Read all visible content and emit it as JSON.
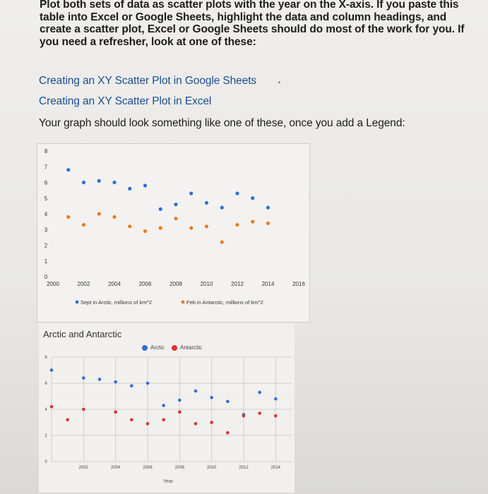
{
  "intro_text": "Plot both sets of data as scatter plots with the year on the X-axis. If you paste this table into Excel or Google Sheets, highlight the data and column headings, and create a scatter plot, Excel or Google Sheets should do most of the work for you. If you need a refresher, look at one of these:",
  "links": {
    "google_sheets": "Creating an XY Scatter Plot in Google Sheets",
    "excel": "Creating an XY Scatter Plot in Excel"
  },
  "caption": "Your graph should look something like one of these, once you add a Legend:",
  "colors": {
    "sept_arctic": "#2f6fd6",
    "feb_antarctic": "#ee7a1c",
    "link": "#1d4f8f"
  },
  "chart_data": [
    {
      "type": "scatter",
      "title": "",
      "xlabel": "",
      "ylabel": "",
      "xlim": [
        2000,
        2016
      ],
      "ylim": [
        0,
        8
      ],
      "xticks": [
        "2000",
        "2002",
        "2004",
        "2006",
        "2008",
        "2010",
        "2012",
        "2014",
        "2016"
      ],
      "yticks": [
        "0",
        "1",
        "2",
        "3",
        "4",
        "5",
        "6",
        "7",
        "8"
      ],
      "grid": false,
      "legend": "bottom",
      "series": [
        {
          "name": "Sept in Arctic, millions of km^2",
          "x": [
            2001,
            2002,
            2003,
            2004,
            2005,
            2006,
            2007,
            2008,
            2009,
            2010,
            2011,
            2012,
            2013,
            2014
          ],
          "y": [
            6.8,
            6.0,
            6.1,
            6.0,
            5.6,
            5.8,
            4.3,
            4.6,
            5.3,
            4.7,
            4.4,
            5.3,
            5.0,
            4.4
          ]
        },
        {
          "name": "Feb in Antarctic, millions of km^2",
          "x": [
            2001,
            2002,
            2003,
            2004,
            2005,
            2006,
            2007,
            2008,
            2009,
            2010,
            2011,
            2012,
            2013,
            2014
          ],
          "y": [
            3.8,
            3.3,
            4.0,
            3.8,
            3.2,
            2.9,
            3.1,
            3.7,
            3.1,
            3.2,
            2.2,
            3.3,
            3.5,
            3.4
          ]
        }
      ]
    },
    {
      "type": "scatter",
      "title": "Arctic and Antarctic",
      "xlabel": "Year",
      "ylabel": "",
      "xlim": [
        2000,
        2015
      ],
      "ylim": [
        0,
        8
      ],
      "xticks": [
        "2002",
        "2004",
        "2006",
        "2008",
        "2010",
        "2012",
        "2014"
      ],
      "yticks": [
        "0",
        "2",
        "4",
        "6",
        "8"
      ],
      "grid": true,
      "legend": "top",
      "series": [
        {
          "name": "Arctic",
          "x": [
            2000,
            2002,
            2003,
            2004,
            2005,
            2006,
            2007,
            2008,
            2009,
            2010,
            2011,
            2012,
            2013,
            2014
          ],
          "y": [
            7.0,
            6.4,
            6.3,
            6.1,
            5.8,
            6.0,
            4.3,
            4.7,
            5.4,
            4.9,
            4.6,
            3.6,
            5.3,
            4.8
          ]
        },
        {
          "name": "Antarctic",
          "x": [
            2000,
            2001,
            2002,
            2004,
            2005,
            2006,
            2007,
            2008,
            2009,
            2010,
            2011,
            2012,
            2013,
            2014
          ],
          "y": [
            4.2,
            3.2,
            4.0,
            3.8,
            3.2,
            2.9,
            3.2,
            3.8,
            2.9,
            3.0,
            2.2,
            3.5,
            3.7,
            3.5
          ]
        }
      ]
    }
  ]
}
